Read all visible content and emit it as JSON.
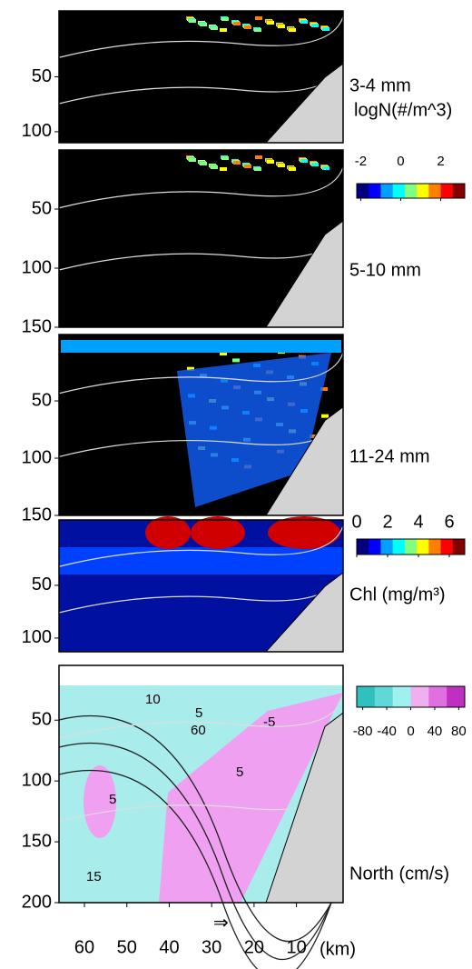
{
  "chart_data": [
    {
      "type": "heatmap",
      "label": "3-4 mm",
      "ylim": [
        110,
        -10
      ],
      "yticks": [
        50,
        100
      ],
      "xlim": [
        66,
        -1
      ],
      "colorbar": {
        "label": "logN(#/m^3)",
        "lim": [
          -2.2,
          3.2
        ],
        "ticks": [
          -2,
          0,
          2
        ],
        "colors": [
          "#000080",
          "#0000ff",
          "#00a0ff",
          "#00ffff",
          "#80ff80",
          "#ffff00",
          "#ff8000",
          "#ff0000",
          "#800000"
        ]
      }
    },
    {
      "type": "heatmap",
      "label": "5-10 mm",
      "ylim": [
        150,
        0
      ],
      "yticks": [
        50,
        100,
        150
      ],
      "xlim": [
        66,
        -1
      ]
    },
    {
      "type": "heatmap",
      "label": "11-24 mm",
      "ylim": [
        150,
        -8
      ],
      "yticks": [
        50,
        100,
        150
      ],
      "xlim": [
        66,
        -1
      ]
    },
    {
      "type": "heatmap",
      "label": "Chl (mg/m³)",
      "ylim": [
        113,
        -12
      ],
      "yticks": [
        50,
        100
      ],
      "xlim": [
        66,
        -1
      ],
      "colorbar": {
        "lim": [
          0,
          7
        ],
        "ticks": [
          0,
          2,
          4,
          6
        ],
        "colors": [
          "#000080",
          "#0000ff",
          "#00a0ff",
          "#00ffff",
          "#80ff80",
          "#ffff00",
          "#ff8000",
          "#ff0000",
          "#800000"
        ]
      }
    },
    {
      "type": "contour",
      "label": "North (cm/s)",
      "ylim": [
        200,
        5
      ],
      "yticks": [
        50,
        100,
        150,
        200
      ],
      "xlim": [
        66,
        -1
      ],
      "xticks": [
        60,
        50,
        40,
        30,
        20,
        10
      ],
      "xlabel": "(km)",
      "contour_labels": [
        "60",
        "10",
        "5",
        "5",
        "-5",
        "15",
        "5"
      ],
      "colorbar": {
        "lim": [
          -90,
          90
        ],
        "ticks": [
          -80,
          -40,
          0,
          40,
          80
        ],
        "colors": [
          "#30c0c0",
          "#60d8d8",
          "#a0f0f0",
          "#f0b0f0",
          "#e070e0",
          "#c030c0"
        ]
      }
    }
  ]
}
